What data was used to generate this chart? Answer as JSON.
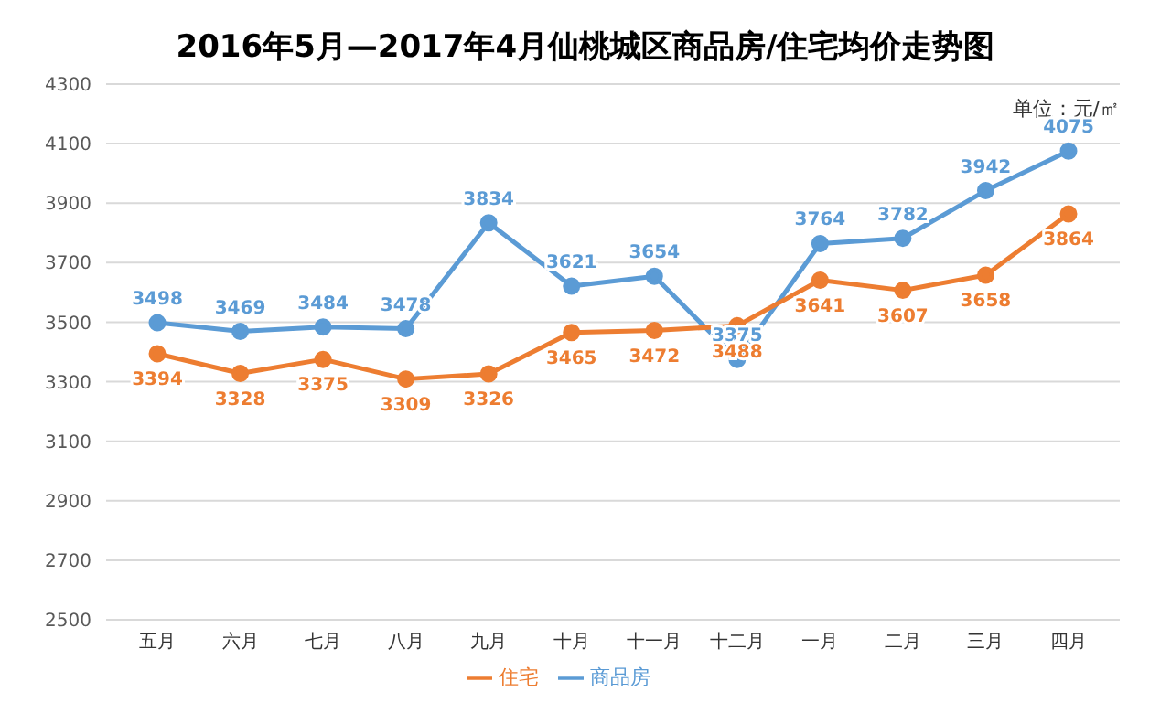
{
  "chart_data": {
    "type": "line",
    "title": "2016年5月—2017年4月仙桃城区商品房/住宅均价走势图",
    "annotations": [
      "单位：元/㎡"
    ],
    "categories": [
      "五月",
      "六月",
      "七月",
      "八月",
      "九月",
      "十月",
      "十一月",
      "十二月",
      "一月",
      "二月",
      "三月",
      "四月"
    ],
    "series": [
      {
        "name": "商品房",
        "color": "#5b9bd5",
        "values": [
          3498,
          3469,
          3484,
          3478,
          3834,
          3621,
          3654,
          3375,
          3764,
          3782,
          3942,
          4075
        ]
      },
      {
        "name": "住宅",
        "color": "#ed7d31",
        "values": [
          3394,
          3328,
          3375,
          3309,
          3326,
          3465,
          3472,
          3488,
          3641,
          3607,
          3658,
          3864
        ]
      }
    ],
    "ylim": [
      2500,
      4300
    ],
    "yticks": [
      2500,
      2700,
      2900,
      3100,
      3300,
      3500,
      3700,
      3900,
      4100,
      4300
    ],
    "grid": "y",
    "legend": "bottom",
    "marker": "circle",
    "line_style": "solid",
    "data_labels": true
  }
}
